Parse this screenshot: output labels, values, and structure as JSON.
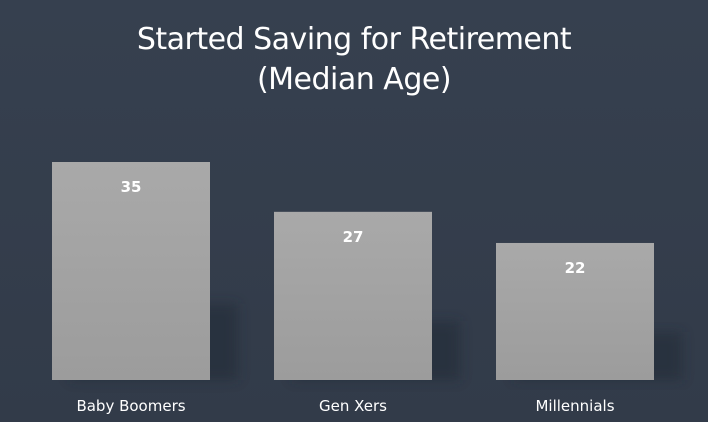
{
  "slide": {
    "title_line1": "Started Saving for Retirement",
    "title_line2": "(Median Age)"
  },
  "colors": {
    "background": "#333d4c",
    "bar": "#a0a0a0",
    "text": "#ffffff"
  },
  "chart_data": {
    "type": "bar",
    "title": "Started Saving for Retirement (Median Age)",
    "categories": [
      "Baby Boomers",
      "Gen Xers",
      "Millennials"
    ],
    "values": [
      35,
      27,
      22
    ],
    "xlabel": "",
    "ylabel": "",
    "grid": false,
    "legend": "none",
    "data_labels": true
  }
}
